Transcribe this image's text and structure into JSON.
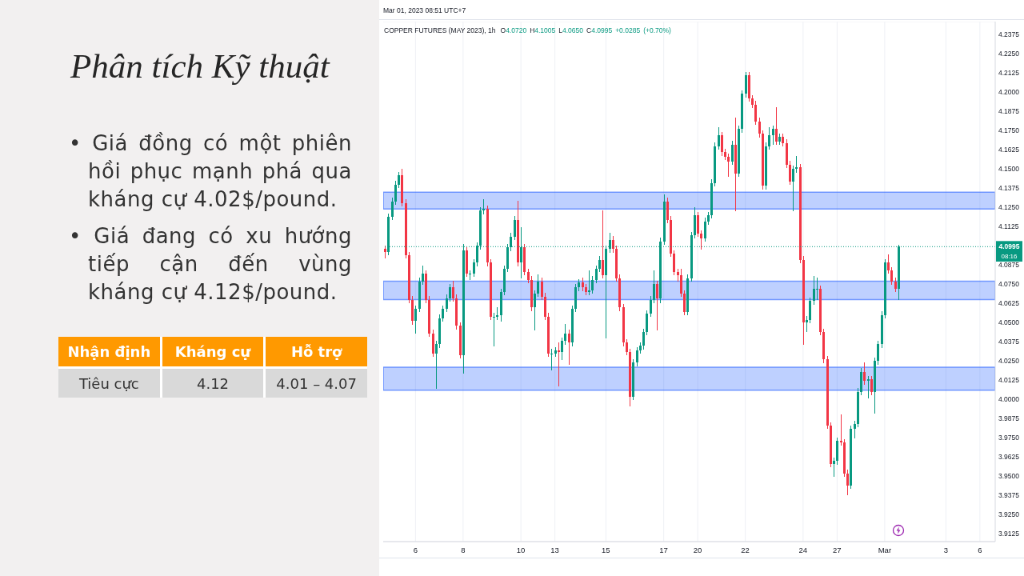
{
  "chart_data": [
    {
      "type": "other",
      "title": "Phân tích Kỹ thuật",
      "annotations": [
        "• Giá đồng có một phiên hồi phục mạnh phá qua kháng cự 4.02$/pound.",
        "• Giá đang có xu hướng tiếp cận đến vùng kháng cự 4.12$/pound."
      ],
      "categories": [
        "Nhận định",
        "Kháng cự",
        "Hỗ trợ"
      ],
      "cell_labels": [
        [
          "Tiêu cực",
          "4.12",
          "4.01 – 4.07"
        ]
      ]
    },
    {
      "type": "candlestick",
      "title": "COPPER FUTURES (MAY 2023), 1h",
      "subtitle": "Mar 01, 2023 08:51 UTC+7",
      "annotations": [
        "O4.0720 H4.1005 L4.0650 C4.0995 +0.0285 (+0.70%)",
        {
          "text": "08:16",
          "y": 4.0995
        }
      ],
      "categories": [
        null,
        null,
        null,
        null,
        null,
        null,
        null,
        null,
        null,
        "6",
        null,
        null,
        null,
        null,
        null,
        null,
        null,
        null,
        null,
        null,
        null,
        null,
        null,
        "8",
        null,
        null,
        null,
        null,
        null,
        null,
        null,
        null,
        null,
        null,
        null,
        null,
        null,
        null,
        null,
        null,
        "10",
        null,
        null,
        null,
        null,
        null,
        null,
        null,
        null,
        null,
        "13",
        null,
        null,
        null,
        null,
        null,
        null,
        null,
        null,
        null,
        null,
        null,
        null,
        null,
        null,
        "15",
        null,
        null,
        null,
        null,
        null,
        null,
        null,
        null,
        null,
        null,
        null,
        null,
        null,
        null,
        null,
        null,
        "17",
        null,
        null,
        null,
        null,
        null,
        null,
        null,
        null,
        null,
        "20",
        null,
        null,
        null,
        null,
        null,
        null,
        null,
        null,
        null,
        null,
        null,
        null,
        null,
        "22",
        null,
        null,
        null,
        null,
        null,
        null,
        null,
        null,
        null,
        null,
        null,
        null,
        null,
        null,
        null,
        null,
        "24",
        null,
        null,
        null,
        null,
        null,
        null,
        null,
        null,
        null,
        "27",
        null,
        null,
        null,
        null,
        null,
        null,
        null,
        null,
        null,
        null,
        null,
        null,
        null,
        "Mar",
        null,
        null,
        null,
        null,
        null,
        null,
        null,
        null,
        null,
        null,
        null,
        null,
        null,
        null,
        null,
        null,
        null,
        "3",
        null,
        null,
        null,
        null,
        null,
        null,
        null,
        null,
        null,
        "6",
        null,
        null,
        null,
        null
      ],
      "ohlc": [
        [
          4.098,
          4.1,
          4.092,
          4.096
        ],
        [
          4.096,
          4.121,
          4.094,
          4.119
        ],
        [
          4.119,
          4.131,
          4.117,
          4.129
        ],
        [
          4.129,
          4.142,
          4.127,
          4.14
        ],
        [
          4.14,
          4.148,
          4.138,
          4.146
        ],
        [
          4.146,
          4.15,
          4.126,
          4.128
        ],
        [
          4.128,
          4.13,
          4.092,
          4.094
        ],
        [
          4.094,
          4.096,
          4.063,
          4.065
        ],
        [
          4.065,
          4.067,
          4.049,
          4.051
        ],
        [
          4.051,
          4.061,
          4.043,
          4.059
        ],
        [
          4.059,
          4.079,
          4.057,
          4.077
        ],
        [
          4.077,
          4.087,
          4.075,
          4.082
        ],
        [
          4.082,
          4.084,
          4.063,
          4.065
        ],
        [
          4.065,
          4.067,
          4.041,
          4.043
        ],
        [
          4.043,
          4.045,
          4.028,
          4.03
        ],
        [
          4.03,
          4.038,
          4.007,
          4.036
        ],
        [
          4.036,
          4.055,
          4.034,
          4.053
        ],
        [
          4.053,
          4.061,
          4.051,
          4.059
        ],
        [
          4.059,
          4.068,
          4.057,
          4.066
        ],
        [
          4.066,
          4.075,
          4.064,
          4.073
        ],
        [
          4.073,
          4.077,
          4.064,
          4.066
        ],
        [
          4.066,
          4.068,
          4.046,
          4.048
        ],
        [
          4.048,
          4.05,
          4.027,
          4.029
        ],
        [
          4.029,
          4.101,
          4.017,
          4.097
        ],
        [
          4.097,
          4.099,
          4.08,
          4.082
        ],
        [
          4.082,
          4.084,
          4.078,
          4.082
        ],
        [
          4.082,
          4.091,
          4.08,
          4.089
        ],
        [
          4.089,
          4.102,
          4.087,
          4.1
        ],
        [
          4.1,
          4.125,
          4.098,
          4.123
        ],
        [
          4.123,
          4.13,
          4.121,
          4.124
        ],
        [
          4.124,
          4.126,
          4.087,
          4.089
        ],
        [
          4.089,
          4.091,
          4.052,
          4.054
        ],
        [
          4.054,
          4.056,
          4.035,
          4.054
        ],
        [
          4.054,
          4.06,
          4.052,
          4.055
        ],
        [
          4.055,
          4.072,
          4.051,
          4.07
        ],
        [
          4.07,
          4.087,
          4.068,
          4.085
        ],
        [
          4.085,
          4.101,
          4.083,
          4.099
        ],
        [
          4.099,
          4.108,
          4.097,
          4.106
        ],
        [
          4.106,
          4.119,
          4.104,
          4.117
        ],
        [
          4.117,
          4.129,
          4.087,
          4.089
        ],
        [
          4.089,
          4.112,
          4.079,
          4.099
        ],
        [
          4.099,
          4.101,
          4.081,
          4.083
        ],
        [
          4.083,
          4.085,
          4.076,
          4.078
        ],
        [
          4.078,
          4.08,
          4.058,
          4.06
        ],
        [
          4.06,
          4.071,
          4.045,
          4.069
        ],
        [
          4.069,
          4.081,
          4.067,
          4.077
        ],
        [
          4.077,
          4.079,
          4.065,
          4.067
        ],
        [
          4.067,
          4.069,
          4.052,
          4.054
        ],
        [
          4.054,
          4.056,
          4.028,
          4.03
        ],
        [
          4.03,
          4.033,
          4.019,
          4.03
        ],
        [
          4.03,
          4.034,
          4.028,
          4.032
        ],
        [
          4.032,
          4.037,
          4.009,
          4.031
        ],
        [
          4.031,
          4.04,
          4.026,
          4.038
        ],
        [
          4.038,
          4.049,
          4.036,
          4.043
        ],
        [
          4.043,
          4.045,
          4.023,
          4.037
        ],
        [
          4.037,
          4.061,
          4.035,
          4.059
        ],
        [
          4.059,
          4.075,
          4.057,
          4.073
        ],
        [
          4.073,
          4.078,
          4.071,
          4.076
        ],
        [
          4.076,
          4.079,
          4.071,
          4.073
        ],
        [
          4.073,
          4.075,
          4.068,
          4.07
        ],
        [
          4.07,
          4.084,
          4.068,
          4.071
        ],
        [
          4.071,
          4.08,
          4.069,
          4.078
        ],
        [
          4.078,
          4.087,
          4.076,
          4.085
        ],
        [
          4.085,
          4.093,
          4.083,
          4.091
        ],
        [
          4.091,
          4.123,
          4.079,
          4.081
        ],
        [
          4.081,
          4.1,
          4.04,
          4.098
        ],
        [
          4.098,
          4.108,
          4.096,
          4.104
        ],
        [
          4.104,
          4.106,
          4.096,
          4.098
        ],
        [
          4.098,
          4.1,
          4.077,
          4.079
        ],
        [
          4.079,
          4.081,
          4.058,
          4.06
        ],
        [
          4.06,
          4.062,
          4.035,
          4.037
        ],
        [
          4.037,
          4.039,
          4.029,
          4.031
        ],
        [
          4.031,
          4.033,
          3.996,
          4.002
        ],
        [
          4.002,
          4.026,
          4.0,
          4.024
        ],
        [
          4.024,
          4.034,
          4.022,
          4.032
        ],
        [
          4.032,
          4.037,
          4.03,
          4.035
        ],
        [
          4.035,
          4.046,
          4.033,
          4.044
        ],
        [
          4.044,
          4.058,
          4.042,
          4.056
        ],
        [
          4.056,
          4.067,
          4.054,
          4.065
        ],
        [
          4.065,
          4.084,
          4.063,
          4.075
        ],
        [
          4.075,
          4.077,
          4.045,
          4.066
        ],
        [
          4.066,
          4.105,
          4.063,
          4.103
        ],
        [
          4.103,
          4.133,
          4.101,
          4.129
        ],
        [
          4.129,
          4.131,
          4.115,
          4.117
        ],
        [
          4.117,
          4.119,
          4.093,
          4.095
        ],
        [
          4.095,
          4.097,
          4.081,
          4.083
        ],
        [
          4.083,
          4.085,
          4.077,
          4.081
        ],
        [
          4.081,
          4.085,
          4.067,
          4.069
        ],
        [
          4.069,
          4.071,
          4.055,
          4.057
        ],
        [
          4.057,
          4.081,
          4.055,
          4.079
        ],
        [
          4.079,
          4.109,
          4.077,
          4.107
        ],
        [
          4.107,
          4.125,
          4.105,
          4.12
        ],
        [
          4.12,
          4.122,
          4.106,
          4.108
        ],
        [
          4.108,
          4.11,
          4.098,
          4.105
        ],
        [
          4.105,
          4.118,
          4.103,
          4.116
        ],
        [
          4.116,
          4.122,
          4.114,
          4.12
        ],
        [
          4.12,
          4.143,
          4.118,
          4.141
        ],
        [
          4.141,
          4.167,
          4.139,
          4.165
        ],
        [
          4.165,
          4.177,
          4.163,
          4.172
        ],
        [
          4.172,
          4.174,
          4.159,
          4.161
        ],
        [
          4.161,
          4.163,
          4.156,
          4.158
        ],
        [
          4.158,
          4.16,
          4.145,
          4.155
        ],
        [
          4.155,
          4.168,
          4.153,
          4.166
        ],
        [
          4.166,
          4.183,
          4.123,
          4.147
        ],
        [
          4.147,
          4.178,
          4.145,
          4.176
        ],
        [
          4.176,
          4.201,
          4.174,
          4.199
        ],
        [
          4.199,
          4.213,
          4.197,
          4.211
        ],
        [
          4.211,
          4.213,
          4.194,
          4.196
        ],
        [
          4.196,
          4.198,
          4.19,
          4.192
        ],
        [
          4.192,
          4.194,
          4.179,
          4.181
        ],
        [
          4.181,
          4.183,
          4.171,
          4.173
        ],
        [
          4.173,
          4.175,
          4.137,
          4.139
        ],
        [
          4.139,
          4.167,
          4.137,
          4.165
        ],
        [
          4.165,
          4.177,
          4.163,
          4.172
        ],
        [
          4.172,
          4.178,
          4.166,
          4.176
        ],
        [
          4.176,
          4.19,
          4.166,
          4.168
        ],
        [
          4.168,
          4.173,
          4.166,
          4.171
        ],
        [
          4.171,
          4.173,
          4.165,
          4.167
        ],
        [
          4.167,
          4.169,
          4.151,
          4.153
        ],
        [
          4.153,
          4.155,
          4.14,
          4.142
        ],
        [
          4.142,
          4.152,
          4.123,
          4.15
        ],
        [
          4.15,
          4.158,
          4.148,
          4.151
        ],
        [
          4.151,
          4.153,
          4.089,
          4.091
        ],
        [
          4.091,
          4.093,
          4.036,
          4.05
        ],
        [
          4.05,
          4.054,
          4.044,
          4.052
        ],
        [
          4.052,
          4.066,
          4.05,
          4.064
        ],
        [
          4.064,
          4.08,
          4.062,
          4.072
        ],
        [
          4.072,
          4.079,
          4.065,
          4.072
        ],
        [
          4.072,
          4.074,
          4.042,
          4.044
        ],
        [
          4.044,
          4.046,
          4.024,
          4.026
        ],
        [
          4.026,
          4.028,
          3.981,
          3.983
        ],
        [
          3.983,
          3.985,
          3.956,
          3.958
        ],
        [
          3.958,
          3.962,
          3.95,
          3.96
        ],
        [
          3.96,
          3.975,
          3.958,
          3.973
        ],
        [
          3.973,
          3.99,
          3.97,
          3.972
        ],
        [
          3.972,
          3.974,
          3.95,
          3.952
        ],
        [
          3.952,
          3.954,
          3.938,
          3.944
        ],
        [
          3.944,
          3.983,
          3.942,
          3.981
        ],
        [
          3.981,
          3.986,
          3.975,
          3.984
        ],
        [
          3.984,
          4.007,
          3.982,
          4.005
        ],
        [
          4.005,
          4.02,
          4.003,
          4.018
        ],
        [
          4.018,
          4.024,
          4.01,
          4.012
        ],
        [
          4.012,
          4.015,
          4.001,
          4.013
        ],
        [
          4.013,
          4.015,
          4.003,
          4.005
        ],
        [
          4.005,
          4.027,
          3.991,
          4.025
        ],
        [
          4.025,
          4.038,
          4.023,
          4.036
        ],
        [
          4.036,
          4.057,
          4.034,
          4.055
        ],
        [
          4.055,
          4.091,
          4.053,
          4.089
        ],
        [
          4.089,
          4.094,
          4.082,
          4.084
        ],
        [
          4.084,
          4.086,
          4.075,
          4.077
        ],
        [
          4.077,
          4.079,
          4.07,
          4.072
        ],
        [
          4.072,
          4.1005,
          4.065,
          4.0995
        ],
        null,
        null,
        null,
        null,
        null,
        null,
        null,
        null,
        null,
        null,
        null,
        null,
        null,
        null,
        null,
        null,
        null,
        null,
        null,
        null,
        null,
        null,
        null,
        null,
        null,
        null,
        null,
        null
      ],
      "colors": [
        "#f23645",
        "#089981",
        "#089981",
        "#089981",
        "#089981",
        "#f23645",
        "#f23645",
        "#f23645",
        "#f23645",
        "#089981",
        "#089981",
        "#089981",
        "#f23645",
        "#f23645",
        "#f23645",
        "#089981",
        "#089981",
        "#089981",
        "#089981",
        "#089981",
        "#f23645",
        "#f23645",
        "#f23645",
        "#089981",
        "#f23645",
        "#089981",
        "#089981",
        "#089981",
        "#089981",
        "#089981",
        "#f23645",
        "#f23645",
        "#089981",
        "#089981",
        "#089981",
        "#089981",
        "#089981",
        "#089981",
        "#089981",
        "#f23645",
        "#089981",
        "#f23645",
        "#f23645",
        "#f23645",
        "#089981",
        "#089981",
        "#f23645",
        "#f23645",
        "#f23645",
        "#089981",
        "#089981",
        "#f23645",
        "#089981",
        "#089981",
        "#f23645",
        "#089981",
        "#089981",
        "#089981",
        "#f23645",
        "#f23645",
        "#089981",
        "#089981",
        "#089981",
        "#089981",
        "#f23645",
        "#089981",
        "#089981",
        "#f23645",
        "#f23645",
        "#f23645",
        "#f23645",
        "#f23645",
        "#f23645",
        "#089981",
        "#089981",
        "#089981",
        "#089981",
        "#089981",
        "#089981",
        "#089981",
        "#f23645",
        "#089981",
        "#089981",
        "#f23645",
        "#f23645",
        "#f23645",
        "#f23645",
        "#f23645",
        "#f23645",
        "#089981",
        "#089981",
        "#089981",
        "#f23645",
        "#f23645",
        "#089981",
        "#089981",
        "#089981",
        "#089981",
        "#089981",
        "#f23645",
        "#f23645",
        "#f23645",
        "#089981",
        "#f23645",
        "#089981",
        "#089981",
        "#089981",
        "#f23645",
        "#f23645",
        "#f23645",
        "#f23645",
        "#f23645",
        "#089981",
        "#089981",
        "#089981",
        "#f23645",
        "#089981",
        "#f23645",
        "#f23645",
        "#f23645",
        "#089981",
        "#089981",
        "#f23645",
        "#f23645",
        "#089981",
        "#089981",
        "#089981",
        "#089981",
        "#f23645",
        "#f23645",
        "#f23645",
        "#f23645",
        "#089981",
        "#089981",
        "#f23645",
        "#f23645",
        "#f23645",
        "#089981",
        "#089981",
        "#089981",
        "#089981",
        "#f23645",
        "#089981",
        "#f23645",
        "#089981",
        "#089981",
        "#089981",
        "#089981",
        "#f23645",
        "#f23645",
        "#f23645",
        "#089981",
        null,
        null,
        null,
        null,
        null,
        null,
        null,
        null,
        null,
        null,
        null,
        null,
        null,
        null,
        null,
        null,
        null,
        null,
        null,
        null,
        null,
        null,
        null,
        null,
        null,
        null,
        null,
        null
      ],
      "ylim": [
        3.9075,
        4.246
      ],
      "yticks": [
        3.9125,
        {
          "value": 3.925,
          "label": "3.9250"
        },
        3.9375,
        {
          "value": 3.95,
          "label": "3.9500"
        },
        3.9625,
        {
          "value": 3.975,
          "label": "3.9750"
        },
        3.9875,
        {
          "value": 4,
          "label": "4.0000"
        },
        4.0125,
        {
          "value": 4.025,
          "label": "4.0250"
        },
        4.0375,
        {
          "value": 4.05,
          "label": "4.0500"
        },
        4.0625,
        {
          "value": 4.075,
          "label": "4.0750"
        },
        4.0875,
        {
          "value": 4.1,
          "label": null
        },
        4.1125,
        {
          "value": 4.125,
          "label": "4.1250"
        },
        4.1375,
        {
          "value": 4.15,
          "label": "4.1500"
        },
        4.1625,
        {
          "value": 4.175,
          "label": "4.1750"
        },
        4.1875,
        {
          "value": 4.2,
          "label": "4.2000"
        },
        4.2125,
        {
          "value": 4.225,
          "label": "4.2250"
        },
        4.2375
      ],
      "grid": true,
      "ref_lines": [
        {
          "axis": "y",
          "value": 4.0995,
          "label": "4.0995",
          "color": "#089981",
          "line_style": "dotted"
        }
      ],
      "bands": [
        {
          "axis": "y",
          "from": 4.124,
          "to": 4.135,
          "color": "#2962ff"
        },
        {
          "axis": "y",
          "from": 4.065,
          "to": 4.077,
          "color": "#2962ff"
        },
        {
          "axis": "y",
          "from": 4.006,
          "to": 4.021,
          "color": "#2962ff"
        }
      ]
    }
  ]
}
